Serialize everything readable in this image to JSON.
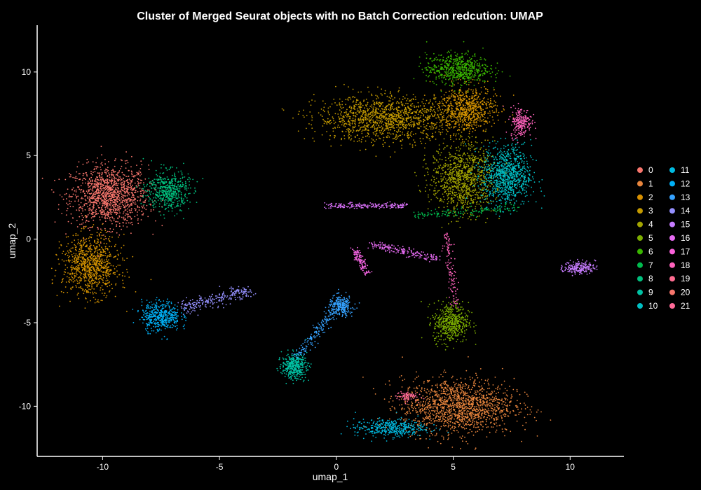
{
  "chart_data": {
    "type": "scatter",
    "title": "Cluster of Merged Seurat objects with no Batch Correction redcution: UMAP",
    "xlabel": "umap_1",
    "ylabel": "umap_2",
    "xlim": [
      -12.8,
      12.3
    ],
    "ylim": [
      -13.0,
      12.8
    ],
    "xticks": [
      -10,
      -5,
      0,
      5,
      10
    ],
    "yticks": [
      10,
      5,
      0,
      -5,
      -10
    ],
    "legend_position": "right",
    "background": "#000000",
    "clusters": [
      {
        "name": "0",
        "color": "#F8766D"
      },
      {
        "name": "1",
        "color": "#E88526"
      },
      {
        "name": "2",
        "color": "#D39200"
      },
      {
        "name": "3",
        "color": "#B79F00"
      },
      {
        "name": "4",
        "color": "#93AA00"
      },
      {
        "name": "5",
        "color": "#5EB300"
      },
      {
        "name": "6",
        "color": "#00BA38"
      },
      {
        "name": "7",
        "color": "#00BF74"
      },
      {
        "name": "8",
        "color": "#00C19F"
      },
      {
        "name": "9",
        "color": "#00BFC4"
      },
      {
        "name": "10",
        "color": "#00B9E3"
      },
      {
        "name": "11",
        "color": "#00ADFA"
      },
      {
        "name": "12",
        "color": "#619CFF"
      },
      {
        "name": "13",
        "color": "#AE87FF"
      },
      {
        "name": "14",
        "color": "#DB72FB"
      },
      {
        "name": "15",
        "color": "#F564E3"
      },
      {
        "name": "16",
        "color": "#FF61C3"
      }
    ],
    "legend": [
      "0",
      "1",
      "2",
      "3",
      "4",
      "5",
      "6",
      "7",
      "8",
      "9",
      "10",
      "11",
      "12",
      "13",
      "14",
      "15",
      "16",
      "17",
      "18",
      "19",
      "20",
      "21"
    ],
    "legend_colors": [
      "#F8766D",
      "#E8853D",
      "#D89000",
      "#C49A00",
      "#A3A500",
      "#7CAE00",
      "#39B600",
      "#00BB4E",
      "#00BF7D",
      "#00C1A3",
      "#00BFC4",
      "#00BAE0",
      "#00B0F6",
      "#35A2FF",
      "#9590FF",
      "#C77CFF",
      "#E76BF3",
      "#FA62DB",
      "#FF62BC",
      "#FF6C91",
      "#F8766D",
      "#FF6A98"
    ],
    "groups": [
      {
        "cluster": "0",
        "color": "#F8766D",
        "n": 1300,
        "shape": "blob",
        "cx": -9.7,
        "cy": 2.6,
        "sx": 1.1,
        "sy": 1.2
      },
      {
        "cluster": "1",
        "color": "#E8853D",
        "n": 1500,
        "shape": "blob",
        "cx": 5.2,
        "cy": -10.0,
        "sx": 1.6,
        "sy": 1.1
      },
      {
        "cluster": "2",
        "color": "#D39200",
        "n": 900,
        "shape": "blob",
        "cx": -10.5,
        "cy": -1.6,
        "sx": 0.8,
        "sy": 1.2
      },
      {
        "cluster": "3",
        "color": "#C49A00",
        "n": 1300,
        "shape": "blob",
        "cx": 2.2,
        "cy": 7.2,
        "sx": 2.0,
        "sy": 0.9
      },
      {
        "cluster": "3b",
        "color": "#D39200",
        "n": 700,
        "shape": "blob",
        "cx": 5.6,
        "cy": 7.8,
        "sx": 0.8,
        "sy": 0.9
      },
      {
        "cluster": "4",
        "color": "#A3A500",
        "n": 1000,
        "shape": "blob",
        "cx": 5.4,
        "cy": 3.6,
        "sx": 0.9,
        "sy": 1.4
      },
      {
        "cluster": "5",
        "color": "#7CAE00",
        "n": 500,
        "shape": "blob",
        "cx": 4.9,
        "cy": -5.0,
        "sx": 0.5,
        "sy": 0.8
      },
      {
        "cluster": "6",
        "color": "#39B600",
        "n": 600,
        "shape": "blob",
        "cx": 5.2,
        "cy": 10.2,
        "sx": 0.9,
        "sy": 0.6
      },
      {
        "cluster": "7",
        "color": "#00BB4E",
        "n": 150,
        "shape": "line",
        "x0": 3.3,
        "y0": 1.4,
        "x1": 7.8,
        "y1": 1.9,
        "w": 0.12
      },
      {
        "cluster": "8",
        "color": "#00BF7D",
        "n": 500,
        "shape": "blob",
        "cx": -7.2,
        "cy": 2.9,
        "sx": 0.6,
        "sy": 0.8
      },
      {
        "cluster": "9",
        "color": "#00C1A3",
        "n": 400,
        "shape": "blob",
        "cx": -1.8,
        "cy": -7.6,
        "sx": 0.35,
        "sy": 0.5
      },
      {
        "cluster": "10",
        "color": "#00BFC4",
        "n": 900,
        "shape": "blob",
        "cx": 7.3,
        "cy": 3.8,
        "sx": 0.7,
        "sy": 1.2
      },
      {
        "cluster": "11",
        "color": "#00BAE0",
        "n": 400,
        "shape": "blob",
        "cx": 2.3,
        "cy": -11.3,
        "sx": 1.0,
        "sy": 0.35
      },
      {
        "cluster": "12",
        "color": "#00B0F6",
        "n": 450,
        "shape": "blob",
        "cx": -7.5,
        "cy": -4.6,
        "sx": 0.55,
        "sy": 0.6
      },
      {
        "cluster": "13",
        "color": "#35A2FF",
        "n": 250,
        "shape": "blob",
        "cx": 0.2,
        "cy": -4.0,
        "sx": 0.35,
        "sy": 0.4
      },
      {
        "cluster": "13b",
        "color": "#35A2FF",
        "n": 160,
        "shape": "line",
        "x0": 0.0,
        "y0": -4.2,
        "x1": -1.7,
        "y1": -7.0,
        "w": 0.15
      },
      {
        "cluster": "14",
        "color": "#9590FF",
        "n": 250,
        "shape": "line",
        "x0": -6.5,
        "y0": -4.1,
        "x1": -3.8,
        "y1": -3.1,
        "w": 0.2
      },
      {
        "cluster": "15",
        "color": "#C77CFF",
        "n": 200,
        "shape": "blob",
        "cx": 10.4,
        "cy": -1.7,
        "sx": 0.45,
        "sy": 0.25
      },
      {
        "cluster": "16",
        "color": "#DB72FB",
        "n": 200,
        "shape": "line",
        "x0": -0.5,
        "y0": 2.0,
        "x1": 3.0,
        "y1": 2.0,
        "w": 0.08
      },
      {
        "cluster": "17",
        "color": "#E76BF3",
        "n": 180,
        "shape": "line",
        "x0": 1.5,
        "y0": -0.3,
        "x1": 4.3,
        "y1": -1.2,
        "w": 0.12
      },
      {
        "cluster": "18",
        "color": "#F564E3",
        "n": 120,
        "shape": "line",
        "x0": 0.8,
        "y0": -0.6,
        "x1": 1.3,
        "y1": -2.1,
        "w": 0.1
      },
      {
        "cluster": "19",
        "color": "#FF62BC",
        "n": 220,
        "shape": "blob",
        "cx": 7.9,
        "cy": 7.0,
        "sx": 0.3,
        "sy": 0.6
      },
      {
        "cluster": "19b",
        "color": "#FF62BC",
        "n": 120,
        "shape": "line",
        "x0": 4.7,
        "y0": 0.3,
        "x1": 5.1,
        "y1": -4.0,
        "w": 0.1
      },
      {
        "cluster": "21",
        "color": "#FF6A98",
        "n": 80,
        "shape": "blob",
        "cx": 3.0,
        "cy": -9.4,
        "sx": 0.3,
        "sy": 0.2
      }
    ]
  }
}
